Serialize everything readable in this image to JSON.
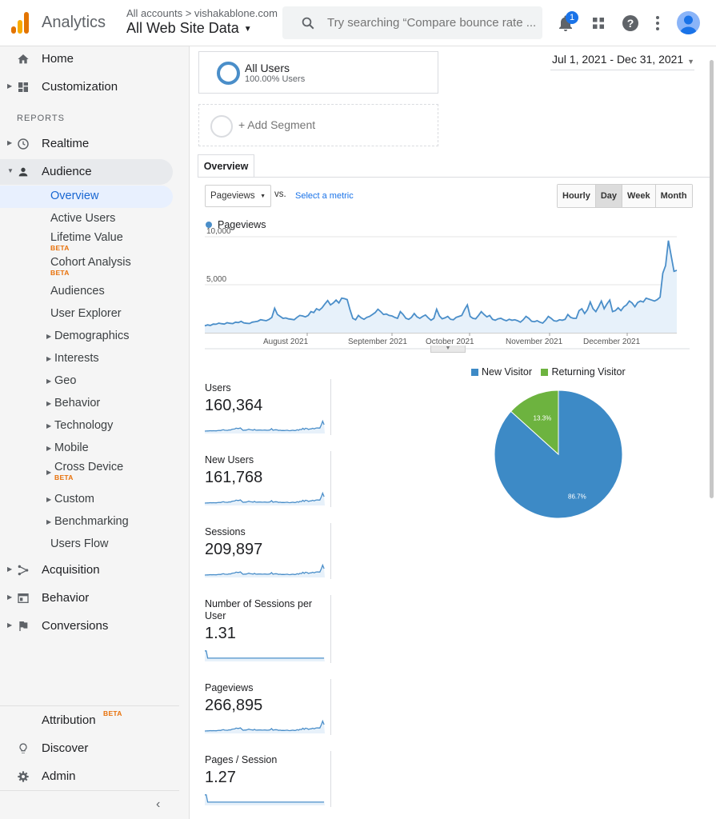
{
  "header": {
    "app_title": "Analytics",
    "account_crumb": "All accounts > vishakablone.com",
    "view_name": "All Web Site Data",
    "search_placeholder": "Try searching “Compare bounce rate ...",
    "notification_count": "1"
  },
  "sidebar": {
    "home": "Home",
    "customization": "Customization",
    "reports_heading": "REPORTS",
    "realtime": "Realtime",
    "audience": "Audience",
    "audience_items": {
      "overview": "Overview",
      "active_users": "Active Users",
      "lifetime_value": "Lifetime Value",
      "cohort_analysis": "Cohort Analysis",
      "audiences": "Audiences",
      "user_explorer": "User Explorer",
      "demographics": "Demographics",
      "interests": "Interests",
      "geo": "Geo",
      "behavior": "Behavior",
      "technology": "Technology",
      "mobile": "Mobile",
      "cross_device": "Cross Device",
      "custom": "Custom",
      "benchmarking": "Benchmarking",
      "users_flow": "Users Flow"
    },
    "beta_label": "BETA",
    "acquisition": "Acquisition",
    "behavior": "Behavior",
    "conversions": "Conversions",
    "attribution": "Attribution",
    "discover": "Discover",
    "admin": "Admin"
  },
  "segments": {
    "all_users": "All Users",
    "all_users_pct": "100.00% Users",
    "add_segment": "+ Add Segment"
  },
  "date_range": "Jul 1, 2021 - Dec 31, 2021",
  "tabs": {
    "overview": "Overview"
  },
  "controls": {
    "metric": "Pageviews",
    "vs": "vs.",
    "select_metric": "Select a metric",
    "granularity": [
      "Hourly",
      "Day",
      "Week",
      "Month"
    ],
    "selected_granularity": "Day"
  },
  "colors": {
    "series": "#4a8ec9",
    "new_visitor": "#3d8ac6",
    "returning_visitor": "#6db33f",
    "accent": "#1a73e8",
    "beta": "#e8710a"
  },
  "chart_data": [
    {
      "type": "area",
      "series": [
        {
          "name": "Pageviews",
          "values": [
            720,
            820,
            760,
            900,
            880,
            1000,
            940,
            900,
            1040,
            980,
            950,
            1100,
            1060,
            1180,
            1020,
            980,
            960,
            1100,
            1140,
            1200,
            1360,
            1300,
            1250,
            1380,
            1600,
            2550,
            1900,
            1700,
            1500,
            1540,
            1440,
            1400,
            1350,
            1600,
            1800,
            1750,
            1650,
            1800,
            2200,
            2100,
            2500,
            2350,
            2600,
            3000,
            3350,
            2900,
            3100,
            3400,
            3100,
            3600,
            3550,
            3450,
            2400,
            1500,
            1350,
            1800,
            1550,
            1400,
            1600,
            1700,
            1900,
            2100,
            2450,
            2200,
            1900,
            1950,
            1800,
            1750,
            1600,
            1500,
            2200,
            1900,
            1500,
            1400,
            1600,
            2000,
            1650,
            1500,
            1700,
            1850,
            1550,
            1300,
            1500,
            2450,
            1750,
            1450,
            1550,
            1700,
            1400,
            1350,
            1600,
            1700,
            1800,
            2400,
            2900,
            1700,
            1500,
            1450,
            1800,
            2200,
            1900,
            1650,
            1800,
            1400,
            1300,
            1450,
            1500,
            1350,
            1250,
            1400,
            1300,
            1350,
            1250,
            1100,
            1350,
            1700,
            1500,
            1200,
            1150,
            1250,
            1100,
            1000,
            1300,
            1700,
            1500,
            1250,
            1200,
            1350,
            1300,
            1400,
            1900,
            1600,
            1500,
            1500,
            2300,
            2500,
            2000,
            2400,
            3200,
            2500,
            2200,
            2700,
            3300,
            2500,
            3000,
            3400,
            2200,
            2300,
            2600,
            2300,
            2700,
            2900,
            3300,
            3100,
            2700,
            3150,
            3300,
            3200,
            3600,
            3500,
            3400,
            3300,
            3450,
            3700,
            6200,
            7000,
            9600,
            8000,
            6400,
            6500
          ],
          "raw_series_note": null
        }
      ],
      "ylim": [
        0,
        10000
      ],
      "yticks": [
        "10,000",
        "5,000"
      ],
      "x_tick_labels": [
        "August 2021",
        "September 2021",
        "October 2021",
        "November 2021",
        "December 2021"
      ],
      "legend": "top-left"
    },
    {
      "type": "pie",
      "categories": [
        "New Visitor",
        "Returning Visitor"
      ],
      "values": [
        86.7,
        13.3
      ],
      "slice_labels": [
        "86.7%",
        "13.3%"
      ],
      "legend": "top"
    }
  ],
  "stats": [
    {
      "label": "Users",
      "value": "160,364"
    },
    {
      "label": "New Users",
      "value": "161,768"
    },
    {
      "label": "Sessions",
      "value": "209,897"
    },
    {
      "label": "Number of Sessions per User",
      "value": "1.31"
    },
    {
      "label": "Pageviews",
      "value": "266,895"
    },
    {
      "label": "Pages / Session",
      "value": "1.27"
    }
  ]
}
